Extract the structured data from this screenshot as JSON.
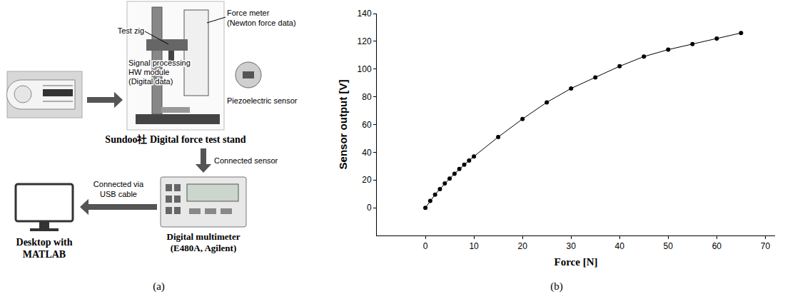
{
  "panel_labels": [
    "(a)",
    "(b)"
  ],
  "diagram": {
    "test_stand": {
      "caption": "Sundoo社 Digital force test stand",
      "test_zig": "Test zig",
      "force_meter": [
        "Force meter",
        "(Newton force data)"
      ],
      "signal_module": [
        "Signal processing",
        "HW module",
        "(Digital data)"
      ],
      "sensor": "Piezoelectric sensor"
    },
    "stand_to_multimeter": "Connected sensor",
    "multimeter": [
      "Digital multimeter",
      "(E480A, Agilent)"
    ],
    "multimeter_to_desktop": [
      "Connected via",
      "USB cable"
    ],
    "desktop": [
      "Desktop with",
      "MATLAB"
    ]
  },
  "chart_data": {
    "type": "line",
    "x_label": "Force [N]",
    "y_label": "Sensor output [V]",
    "x": [
      0,
      1,
      2,
      3,
      4,
      5,
      6,
      7,
      8,
      9,
      10,
      15,
      20,
      25,
      30,
      35,
      40,
      45,
      50,
      55,
      60,
      65
    ],
    "values": [
      0,
      5,
      9.5,
      13.5,
      17.5,
      21,
      24.5,
      28,
      31,
      34,
      37,
      51,
      64,
      76,
      86,
      94,
      102,
      109,
      114,
      118,
      122,
      126
    ],
    "color": "#000000",
    "marker": "circle",
    "xlim": [
      -10,
      72
    ],
    "xticks": [
      0,
      10,
      20,
      30,
      40,
      50,
      60,
      70
    ],
    "ylim": [
      -20,
      140
    ],
    "yticks": [
      0,
      20,
      40,
      60,
      80,
      100,
      120,
      140
    ],
    "grid": false
  }
}
